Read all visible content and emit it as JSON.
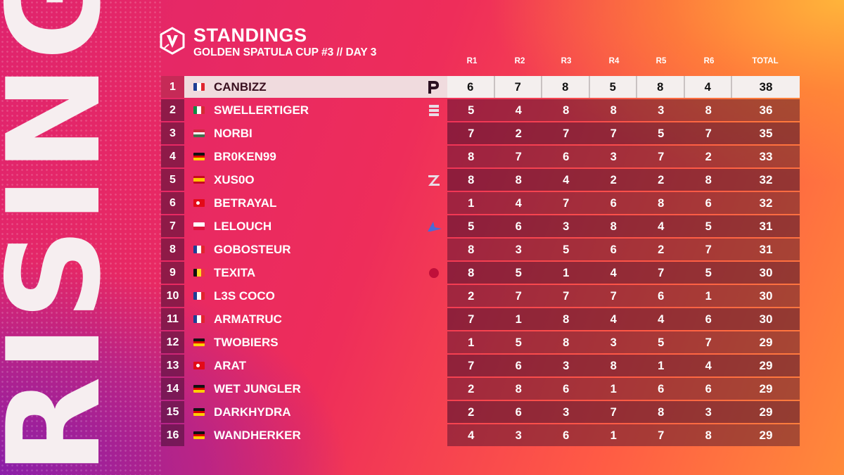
{
  "brand": {
    "side_word": "RISING"
  },
  "header": {
    "title": "STANDINGS",
    "subtitle": "GOLDEN SPATULA CUP #3 // DAY 3"
  },
  "columns": [
    "R1",
    "R2",
    "R3",
    "R4",
    "R5",
    "R6",
    "TOTAL"
  ],
  "rows": [
    {
      "rank": "1",
      "flag": "fr",
      "name": "CANBIZZ",
      "team_logo": "team-logo-icon",
      "scores": [
        "6",
        "7",
        "8",
        "5",
        "8",
        "4"
      ],
      "total": "38"
    },
    {
      "rank": "2",
      "flag": "it",
      "name": "SWELLERTIGER",
      "team_logo": "team-logo-icon",
      "scores": [
        "5",
        "4",
        "8",
        "8",
        "3",
        "8"
      ],
      "total": "36"
    },
    {
      "rank": "3",
      "flag": "hu",
      "name": "NORBI",
      "team_logo": "",
      "scores": [
        "7",
        "2",
        "7",
        "7",
        "5",
        "7"
      ],
      "total": "35"
    },
    {
      "rank": "4",
      "flag": "de",
      "name": "BR0KEN99",
      "team_logo": "",
      "scores": [
        "8",
        "7",
        "6",
        "3",
        "7",
        "2"
      ],
      "total": "33"
    },
    {
      "rank": "5",
      "flag": "es",
      "name": "XUS0O",
      "team_logo": "team-logo-icon",
      "scores": [
        "8",
        "8",
        "4",
        "2",
        "2",
        "8"
      ],
      "total": "32"
    },
    {
      "rank": "6",
      "flag": "tr",
      "name": "BETRAYAL",
      "team_logo": "",
      "scores": [
        "1",
        "4",
        "7",
        "6",
        "8",
        "6"
      ],
      "total": "32"
    },
    {
      "rank": "7",
      "flag": "pl",
      "name": "LELOUCH",
      "team_logo": "team-logo-icon",
      "scores": [
        "5",
        "6",
        "3",
        "8",
        "4",
        "5"
      ],
      "total": "31"
    },
    {
      "rank": "8",
      "flag": "fr",
      "name": "GOBOSTEUR",
      "team_logo": "",
      "scores": [
        "8",
        "3",
        "5",
        "6",
        "2",
        "7"
      ],
      "total": "31"
    },
    {
      "rank": "9",
      "flag": "be",
      "name": "TEXITA",
      "team_logo": "team-logo-icon",
      "scores": [
        "8",
        "5",
        "1",
        "4",
        "7",
        "5"
      ],
      "total": "30"
    },
    {
      "rank": "10",
      "flag": "fr",
      "name": "L3S COCO",
      "team_logo": "",
      "scores": [
        "2",
        "7",
        "7",
        "7",
        "6",
        "1"
      ],
      "total": "30"
    },
    {
      "rank": "11",
      "flag": "fr",
      "name": "ARMATRUC",
      "team_logo": "",
      "scores": [
        "7",
        "1",
        "8",
        "4",
        "4",
        "6"
      ],
      "total": "30"
    },
    {
      "rank": "12",
      "flag": "de",
      "name": "TWOBIERS",
      "team_logo": "",
      "scores": [
        "1",
        "5",
        "8",
        "3",
        "5",
        "7"
      ],
      "total": "29"
    },
    {
      "rank": "13",
      "flag": "tr",
      "name": "ARAT",
      "team_logo": "",
      "scores": [
        "7",
        "6",
        "3",
        "8",
        "1",
        "4"
      ],
      "total": "29"
    },
    {
      "rank": "14",
      "flag": "de",
      "name": "WET JUNGLER",
      "team_logo": "",
      "scores": [
        "2",
        "8",
        "6",
        "1",
        "6",
        "6"
      ],
      "total": "29"
    },
    {
      "rank": "15",
      "flag": "de",
      "name": "DARKHYDRA",
      "team_logo": "",
      "scores": [
        "2",
        "6",
        "3",
        "7",
        "8",
        "3"
      ],
      "total": "29"
    },
    {
      "rank": "16",
      "flag": "de",
      "name": "WANDHERKER",
      "team_logo": "",
      "scores": [
        "4",
        "3",
        "6",
        "1",
        "7",
        "8"
      ],
      "total": "29"
    }
  ],
  "flag_colors": {
    "fr": [
      "#1f3f95",
      "#ffffff",
      "#e0252f"
    ],
    "it": [
      "#0f8a43",
      "#ffffff",
      "#d52b35"
    ],
    "hu": [
      "#cd2a3e",
      "#ffffff",
      "#436f4d"
    ],
    "de": [
      "#111111",
      "#dd0000",
      "#ffce00"
    ],
    "es": [
      "#c60b1e",
      "#ffc400",
      "#c60b1e"
    ],
    "tr": [
      "#e30a17",
      "#e30a17",
      "#e30a17"
    ],
    "pl": [
      "#ffffff",
      "#dc143c"
    ],
    "be": [
      "#111111",
      "#fdda24",
      "#ef3340"
    ]
  }
}
